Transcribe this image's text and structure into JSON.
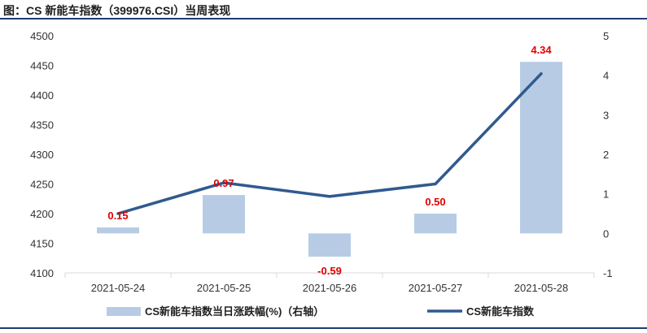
{
  "title": "图：CS 新能车指数（399976.CSI）当周表现",
  "colors": {
    "bar": "#b7cce4",
    "line": "#2f5a8f",
    "label": "#e00000",
    "rule": "#1f3b73",
    "axis": "#d9d9d9"
  },
  "chart_data": {
    "type": "bar+line",
    "categories": [
      "2021-05-24",
      "2021-05-25",
      "2021-05-26",
      "2021-05-27",
      "2021-05-28"
    ],
    "series": [
      {
        "name": "CS新能车指数当日涨跌幅(%)（右轴）",
        "type": "bar",
        "axis": "right",
        "values": [
          0.15,
          0.97,
          -0.59,
          0.5,
          4.34
        ],
        "labels": [
          "0.15",
          "0.97",
          "-0.59",
          "0.50",
          "4.34"
        ]
      },
      {
        "name": "CS新能车指数",
        "type": "line",
        "axis": "left",
        "values": [
          4200,
          4252,
          4229,
          4250,
          4436
        ]
      }
    ],
    "y_left": {
      "min": 4100,
      "max": 4500,
      "ticks": [
        "4100",
        "4150",
        "4200",
        "4250",
        "4300",
        "4350",
        "4400",
        "4450",
        "4500"
      ]
    },
    "y_right": {
      "min": -1,
      "max": 5,
      "ticks": [
        "-1",
        "0",
        "1",
        "2",
        "3",
        "4",
        "5"
      ]
    },
    "grid": false,
    "legend_position": "bottom"
  }
}
